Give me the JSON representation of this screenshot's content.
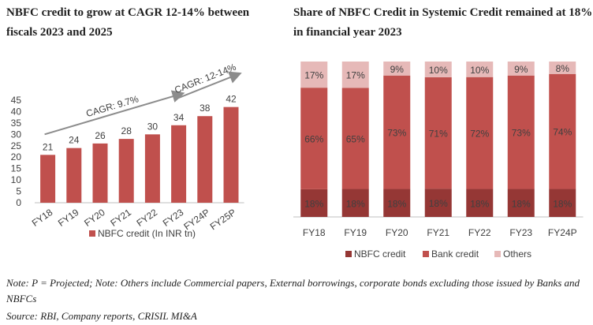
{
  "left_title": "NBFC credit to grow at CAGR 12-14% between fiscals 2023 and 2025",
  "right_title_plain": "Share of NBFC Credit in Systemic Credit remained at 18% in",
  "right_title_bold": "financial year 2023",
  "note": "Note: P = Projected; Note: Others include Commercial papers, External borrowings, corporate bonds excluding those issued by Banks and NBFCs",
  "source": "Source: RBI, Company reports, CRISIL MI&A",
  "colors": {
    "bar": "#c0504d",
    "nbfc": "#953735",
    "bank": "#c0504d",
    "others": "#e6b9b8",
    "arrow": "#8c8c8c"
  },
  "chart_data": [
    {
      "type": "bar",
      "title": "NBFC credit to grow at CAGR 12-14% between fiscals 2023 and 2025",
      "categories": [
        "FY18",
        "FY19",
        "FY20",
        "FY21",
        "FY22",
        "FY23",
        "FY24P",
        "FY25P"
      ],
      "values": [
        21,
        24,
        26,
        28,
        30,
        34,
        38,
        42
      ],
      "data_labels": [
        "21",
        "24",
        "26",
        "28",
        "30",
        "34",
        "38",
        "42"
      ],
      "yticks": [
        "0",
        "5",
        "10",
        "15",
        "20",
        "25",
        "30",
        "35",
        "40",
        "45"
      ],
      "ylim": [
        0,
        45
      ],
      "legend": [
        "NBFC credit (In INR tn)"
      ],
      "annotations": [
        "CAGR: 9.7%",
        "CAGR: 12-14%"
      ]
    },
    {
      "type": "bar",
      "stacked": true,
      "title": "Share of NBFC Credit in Systemic Credit remained at 18% in financial year 2023",
      "categories": [
        "FY18",
        "FY19",
        "FY20",
        "FY21",
        "FY22",
        "FY23",
        "FY24P"
      ],
      "series": [
        {
          "name": "NBFC credit",
          "values": [
            18,
            18,
            18,
            18,
            18,
            18,
            18
          ],
          "labels": [
            "18%",
            "18%",
            "18%",
            "18%",
            "18%",
            "18%",
            "18%"
          ]
        },
        {
          "name": "Bank credit",
          "values": [
            66,
            65,
            73,
            71,
            72,
            73,
            74
          ],
          "labels": [
            "66%",
            "65%",
            "73%",
            "71%",
            "72%",
            "73%",
            "74%"
          ]
        },
        {
          "name": "Others",
          "values": [
            17,
            17,
            9,
            10,
            10,
            9,
            8
          ],
          "labels": [
            "17%",
            "17%",
            "9%",
            "10%",
            "10%",
            "9%",
            "8%"
          ]
        }
      ],
      "ylim": [
        0,
        100
      ]
    }
  ]
}
